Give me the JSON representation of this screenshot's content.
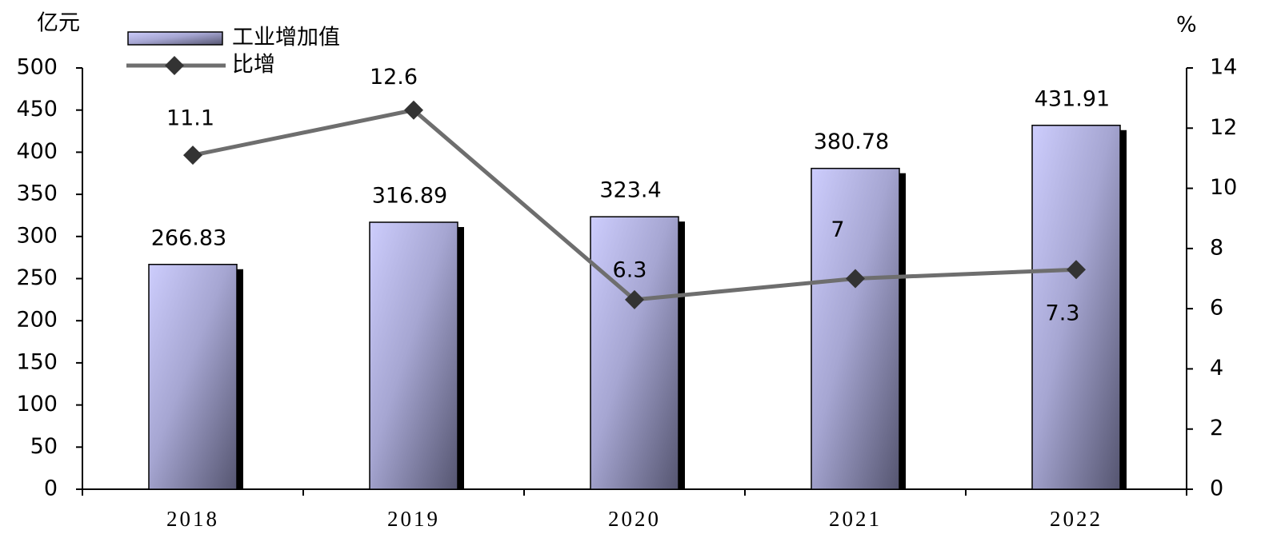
{
  "chart_data": {
    "type": "bar",
    "y_axis_label": "亿元",
    "y2_axis_label": "%",
    "categories": [
      "2018",
      "2019",
      "2020",
      "2021",
      "2022"
    ],
    "series": [
      {
        "name": "工业增加值",
        "type": "bar",
        "color": "#c8c8f8",
        "values": [
          266.83,
          316.89,
          323.4,
          380.78,
          431.91
        ]
      },
      {
        "name": "比增",
        "type": "line",
        "axis": "y2",
        "color": "#6e6e6e",
        "values": [
          11.1,
          12.6,
          6.3,
          7,
          7.3
        ]
      }
    ],
    "ylim": [
      0,
      500
    ],
    "yticks": [
      0,
      50,
      100,
      150,
      200,
      250,
      300,
      350,
      400,
      450,
      500
    ],
    "y2lim": [
      0,
      14
    ],
    "y2ticks": [
      0,
      2,
      4,
      6,
      8,
      10,
      12,
      14
    ],
    "grid": false
  }
}
